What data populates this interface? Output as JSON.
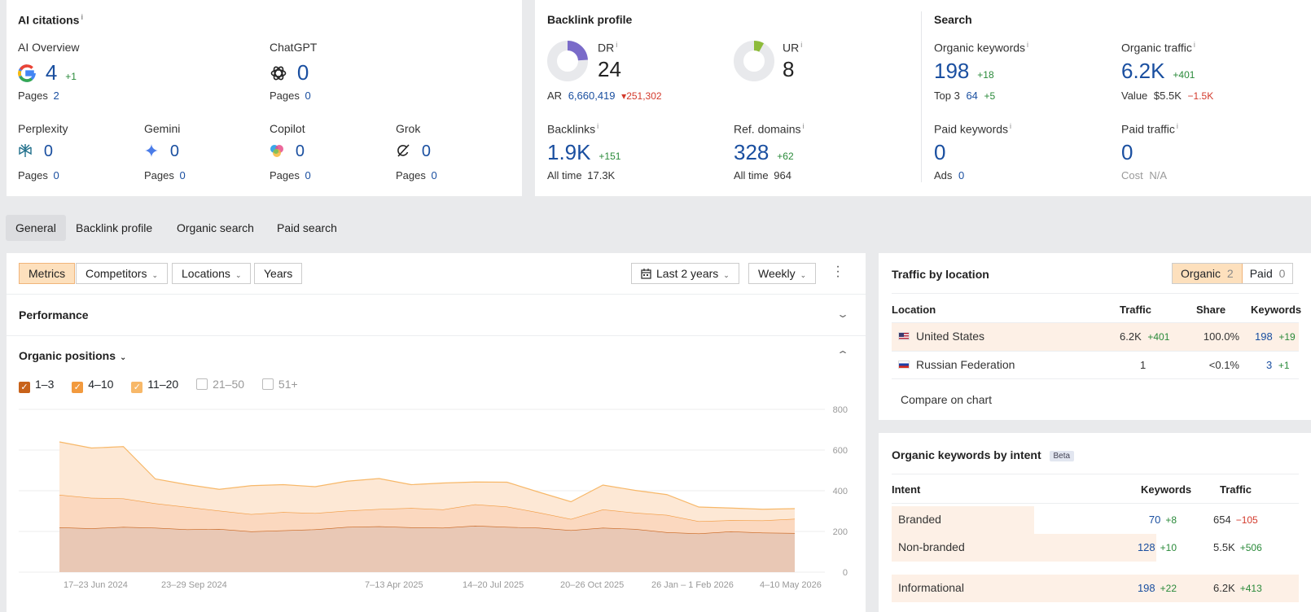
{
  "ai_citations": {
    "title": "AI citations",
    "info": "i",
    "items": [
      {
        "name": "AI Overview",
        "value": "4",
        "delta": "+1",
        "pages_label": "Pages",
        "pages": "2"
      },
      {
        "name": "ChatGPT",
        "value": "0",
        "pages_label": "Pages",
        "pages": "0"
      },
      {
        "name": "Perplexity",
        "value": "0",
        "pages_label": "Pages",
        "pages": "0"
      },
      {
        "name": "Gemini",
        "value": "0",
        "pages_label": "Pages",
        "pages": "0"
      },
      {
        "name": "Copilot",
        "value": "0",
        "pages_label": "Pages",
        "pages": "0"
      },
      {
        "name": "Grok",
        "value": "0",
        "pages_label": "Pages",
        "pages": "0"
      }
    ]
  },
  "backlink_profile": {
    "title": "Backlink profile",
    "dr": {
      "label": "DR",
      "value": "24",
      "fill_fraction": 0.24
    },
    "ur": {
      "label": "UR",
      "value": "8",
      "fill_fraction": 0.08
    },
    "ar": {
      "label": "AR",
      "value": "6,660,419",
      "delta": "251,302"
    },
    "backlinks": {
      "label": "Backlinks",
      "value": "1.9K",
      "delta": "+151",
      "all_time_label": "All time",
      "all_time": "17.3K"
    },
    "ref_domains": {
      "label": "Ref. domains",
      "value": "328",
      "delta": "+62",
      "all_time_label": "All time",
      "all_time": "964"
    }
  },
  "search": {
    "title": "Search",
    "organic_keywords": {
      "label": "Organic keywords",
      "value": "198",
      "delta": "+18",
      "sub_label": "Top 3",
      "sub_value": "64",
      "sub_delta": "+5"
    },
    "organic_traffic": {
      "label": "Organic traffic",
      "value": "6.2K",
      "delta": "+401",
      "sub_label": "Value",
      "sub_value": "$5.5K",
      "sub_delta": "−1.5K"
    },
    "paid_keywords": {
      "label": "Paid keywords",
      "value": "0",
      "sub_label": "Ads",
      "sub_value": "0"
    },
    "paid_traffic": {
      "label": "Paid traffic",
      "value": "0",
      "sub_label": "Cost",
      "sub_value": "N/A"
    }
  },
  "tabs": [
    "General",
    "Backlink profile",
    "Organic search",
    "Paid search"
  ],
  "toolbar": {
    "filters": [
      "Metrics",
      "Competitors",
      "Locations",
      "Years"
    ],
    "date_range": "Last 2 years",
    "interval": "Weekly"
  },
  "performance": {
    "title": "Performance"
  },
  "organic_positions": {
    "title": "Organic positions",
    "legend": [
      {
        "label": "1–3",
        "checked": true,
        "color": "#c8621a"
      },
      {
        "label": "4–10",
        "checked": true,
        "color": "#f29a3e"
      },
      {
        "label": "11–20",
        "checked": true,
        "color": "#f7b869"
      },
      {
        "label": "21–50",
        "checked": false,
        "color": "#cccccc"
      },
      {
        "label": "51+",
        "checked": false,
        "color": "#cccccc"
      }
    ]
  },
  "chart_data": {
    "type": "area",
    "title": "Organic positions",
    "x_ticks": [
      "17–23 Jun 2024",
      "23–29 Sep 2024",
      "7–13 Apr 2025",
      "14–20 Jul 2025",
      "20–26 Oct 2025",
      "26 Jan – 1 Feb 2026",
      "4–10 May 2026"
    ],
    "y_ticks": [
      "800",
      "600",
      "400",
      "200",
      "0"
    ],
    "ylim": [
      0,
      800
    ],
    "stacked": true,
    "n_points": 24,
    "series": [
      {
        "name": "1–3",
        "color": "#e9c8b5",
        "line": "#c8621a",
        "values": [
          220,
          215,
          222,
          218,
          210,
          212,
          200,
          205,
          210,
          222,
          225,
          220,
          218,
          228,
          222,
          218,
          206,
          218,
          212,
          196,
          190,
          200,
          194,
          192
        ]
      },
      {
        "name": "4–10",
        "color": "#fbd8bf",
        "line": "#f29a3e",
        "values": [
          160,
          150,
          140,
          120,
          110,
          90,
          85,
          90,
          80,
          80,
          85,
          95,
          90,
          105,
          100,
          75,
          55,
          90,
          80,
          85,
          60,
          55,
          60,
          70
        ]
      },
      {
        "name": "11–20",
        "color": "#fde8d5",
        "line": "#f7b869",
        "values": [
          260,
          245,
          255,
          120,
          110,
          105,
          140,
          135,
          130,
          145,
          150,
          115,
          130,
          110,
          120,
          100,
          85,
          120,
          110,
          100,
          70,
          60,
          55,
          50
        ]
      }
    ]
  },
  "traffic_by_location": {
    "title": "Traffic by location",
    "toggle": [
      {
        "label": "Organic",
        "count": "2"
      },
      {
        "label": "Paid",
        "count": "0"
      }
    ],
    "headers": [
      "Location",
      "Traffic",
      "Share",
      "Keywords"
    ],
    "rows": [
      {
        "location": "United States",
        "traffic": "6.2K",
        "traffic_delta": "+401",
        "share": "100.0%",
        "keywords": "198",
        "keywords_delta": "+19"
      },
      {
        "location": "Russian Federation",
        "traffic": "1",
        "traffic_delta": "",
        "share": "<0.1%",
        "keywords": "3",
        "keywords_delta": "+1"
      }
    ],
    "compare_label": "Compare on chart"
  },
  "keywords_by_intent": {
    "title": "Organic keywords by intent",
    "badge": "Beta",
    "headers": [
      "Intent",
      "Keywords",
      "Traffic"
    ],
    "rows": [
      {
        "intent": "Branded",
        "keywords": "70",
        "keywords_delta": "+8",
        "traffic": "654",
        "traffic_delta": "−105",
        "traffic_delta_negative": true,
        "share": 0.35
      },
      {
        "intent": "Non-branded",
        "keywords": "128",
        "keywords_delta": "+10",
        "traffic": "5.5K",
        "traffic_delta": "+506",
        "traffic_delta_negative": false,
        "share": 0.65
      },
      {
        "intent": "Informational",
        "keywords": "198",
        "keywords_delta": "+22",
        "traffic": "6.2K",
        "traffic_delta": "+413",
        "traffic_delta_negative": false,
        "share": 1.0
      }
    ]
  }
}
